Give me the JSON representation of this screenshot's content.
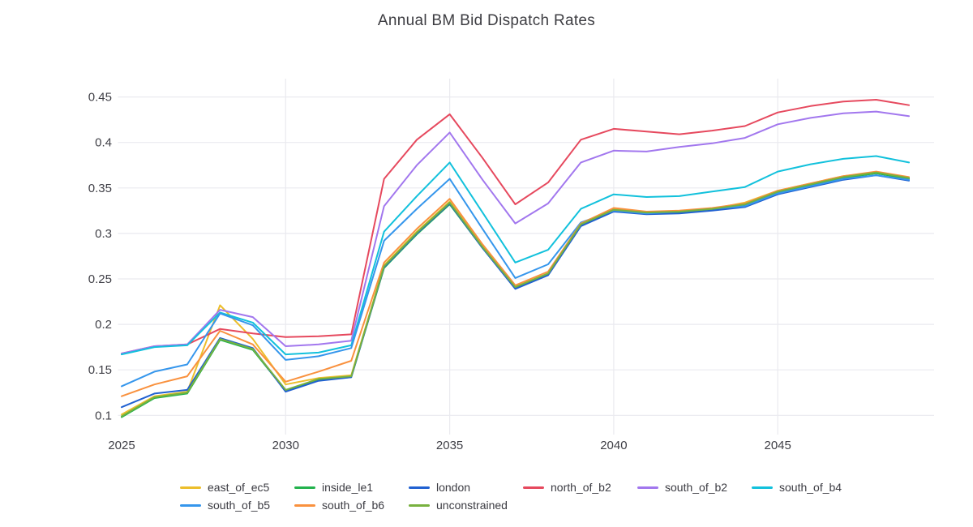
{
  "title": "Annual BM Bid Dispatch Rates",
  "colors": {
    "grid": "#eaeaef",
    "tick_text": "#3f3f46",
    "title_text": "#3d3d42",
    "background": "#ffffff"
  },
  "chart_data": {
    "type": "line",
    "title": "Annual BM Bid Dispatch Rates",
    "xlabel": "",
    "ylabel": "",
    "x": [
      2025,
      2026,
      2027,
      2028,
      2029,
      2030,
      2031,
      2032,
      2033,
      2034,
      2035,
      2036,
      2037,
      2038,
      2039,
      2040,
      2041,
      2042,
      2043,
      2044,
      2045,
      2046,
      2047,
      2048,
      2049
    ],
    "xticks": [
      2025,
      2030,
      2035,
      2040,
      2045
    ],
    "x_gridlines": [
      2030,
      2035,
      2040,
      2045
    ],
    "yticks": [
      0.1,
      0.15,
      0.2,
      0.25,
      0.3,
      0.35,
      0.4,
      0.45
    ],
    "ylim": [
      0.08,
      0.47
    ],
    "grid": true,
    "legend_position": "bottom",
    "series": [
      {
        "name": "east_of_ec5",
        "color": "#ECBE2B",
        "values": [
          0.101,
          0.121,
          0.126,
          0.221,
          0.184,
          0.134,
          0.141,
          0.144,
          0.265,
          0.302,
          0.335,
          0.286,
          0.241,
          0.256,
          0.31,
          0.327,
          0.323,
          0.324,
          0.327,
          0.334,
          0.347,
          0.355,
          0.363,
          0.367,
          0.361
        ]
      },
      {
        "name": "inside_le1",
        "color": "#23B24D",
        "values": [
          0.098,
          0.119,
          0.124,
          0.183,
          0.172,
          0.127,
          0.139,
          0.142,
          0.262,
          0.299,
          0.332,
          0.284,
          0.24,
          0.255,
          0.309,
          0.325,
          0.322,
          0.323,
          0.326,
          0.331,
          0.345,
          0.353,
          0.361,
          0.366,
          0.36
        ]
      },
      {
        "name": "london",
        "color": "#2161D1",
        "values": [
          0.109,
          0.124,
          0.128,
          0.185,
          0.174,
          0.126,
          0.138,
          0.142,
          0.263,
          0.3,
          0.333,
          0.284,
          0.239,
          0.254,
          0.308,
          0.324,
          0.321,
          0.322,
          0.325,
          0.329,
          0.343,
          0.351,
          0.359,
          0.364,
          0.358
        ]
      },
      {
        "name": "north_of_b2",
        "color": "#E6495E",
        "values": [
          0.168,
          0.176,
          0.178,
          0.195,
          0.19,
          0.186,
          0.187,
          0.189,
          0.36,
          0.403,
          0.431,
          0.383,
          0.332,
          0.356,
          0.403,
          0.415,
          0.412,
          0.409,
          0.413,
          0.418,
          0.433,
          0.44,
          0.445,
          0.447,
          0.441
        ]
      },
      {
        "name": "south_of_b2",
        "color": "#A277EE",
        "values": [
          0.168,
          0.176,
          0.178,
          0.216,
          0.208,
          0.176,
          0.178,
          0.182,
          0.33,
          0.375,
          0.411,
          0.359,
          0.311,
          0.333,
          0.378,
          0.391,
          0.39,
          0.395,
          0.399,
          0.405,
          0.42,
          0.427,
          0.432,
          0.434,
          0.429
        ]
      },
      {
        "name": "south_of_b4",
        "color": "#12C1DC",
        "values": [
          0.167,
          0.175,
          0.177,
          0.213,
          0.202,
          0.167,
          0.169,
          0.177,
          0.302,
          0.341,
          0.378,
          0.323,
          0.268,
          0.282,
          0.327,
          0.343,
          0.34,
          0.341,
          0.346,
          0.351,
          0.368,
          0.376,
          0.382,
          0.385,
          0.378
        ]
      },
      {
        "name": "south_of_b5",
        "color": "#3596EC",
        "values": [
          0.132,
          0.148,
          0.156,
          0.212,
          0.199,
          0.161,
          0.165,
          0.174,
          0.292,
          0.327,
          0.36,
          0.305,
          0.251,
          0.266,
          0.312,
          0.325,
          0.322,
          0.324,
          0.327,
          0.33,
          0.344,
          0.352,
          0.36,
          0.364,
          0.359
        ]
      },
      {
        "name": "south_of_b6",
        "color": "#F9913E",
        "values": [
          0.121,
          0.134,
          0.143,
          0.193,
          0.178,
          0.137,
          0.148,
          0.16,
          0.268,
          0.305,
          0.338,
          0.288,
          0.243,
          0.258,
          0.311,
          0.328,
          0.324,
          0.325,
          0.328,
          0.333,
          0.347,
          0.355,
          0.363,
          0.368,
          0.362
        ]
      },
      {
        "name": "unconstrained",
        "color": "#78B13F",
        "values": [
          0.099,
          0.12,
          0.125,
          0.184,
          0.173,
          0.128,
          0.14,
          0.143,
          0.264,
          0.301,
          0.334,
          0.285,
          0.241,
          0.256,
          0.31,
          0.326,
          0.323,
          0.324,
          0.327,
          0.332,
          0.346,
          0.354,
          0.362,
          0.367,
          0.361
        ]
      }
    ]
  }
}
